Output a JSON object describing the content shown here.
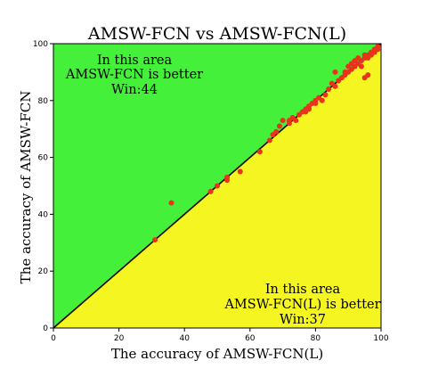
{
  "chart_data": {
    "type": "scatter",
    "title": "AMSW-FCN vs AMSW-FCN(L)",
    "xlabel": "The accuracy of  AMSW-FCN(L)",
    "ylabel": "The accuracy of  AMSW-FCN",
    "xlim": [
      0,
      100
    ],
    "ylim": [
      0,
      100
    ],
    "x_ticks": [
      0,
      20,
      40,
      60,
      80,
      100
    ],
    "y_ticks": [
      0,
      20,
      40,
      60,
      80,
      100
    ],
    "grid": false,
    "colors": {
      "upper_region": "#44f03a",
      "lower_region": "#f5f522",
      "points": "#e8341c",
      "diagonal": "#000000"
    },
    "annotations": {
      "upper": [
        "In this area",
        "AMSW-FCN is better",
        "Win:44"
      ],
      "lower": [
        "In this area",
        "AMSW-FCN(L) is better",
        "Win:37"
      ]
    },
    "points": [
      [
        31,
        31
      ],
      [
        36,
        44
      ],
      [
        48,
        48
      ],
      [
        50,
        50
      ],
      [
        53,
        52
      ],
      [
        53,
        53
      ],
      [
        57,
        55
      ],
      [
        63,
        62
      ],
      [
        66,
        66
      ],
      [
        67,
        68
      ],
      [
        68,
        69
      ],
      [
        69,
        71
      ],
      [
        70,
        73
      ],
      [
        72,
        73
      ],
      [
        72,
        72
      ],
      [
        73,
        74
      ],
      [
        74,
        73
      ],
      [
        75,
        75
      ],
      [
        76,
        76
      ],
      [
        77,
        76
      ],
      [
        77,
        77
      ],
      [
        78,
        78
      ],
      [
        78,
        77
      ],
      [
        79,
        79
      ],
      [
        80,
        80
      ],
      [
        80,
        79
      ],
      [
        81,
        81
      ],
      [
        82,
        80
      ],
      [
        83,
        82
      ],
      [
        84,
        84
      ],
      [
        85,
        86
      ],
      [
        86,
        85
      ],
      [
        86,
        90
      ],
      [
        87,
        87
      ],
      [
        88,
        88
      ],
      [
        89,
        89
      ],
      [
        89,
        90
      ],
      [
        90,
        90
      ],
      [
        90,
        92
      ],
      [
        91,
        91
      ],
      [
        91,
        93
      ],
      [
        92,
        92
      ],
      [
        92,
        94
      ],
      [
        93,
        93
      ],
      [
        93,
        95
      ],
      [
        94,
        94
      ],
      [
        94,
        92
      ],
      [
        95,
        95
      ],
      [
        95,
        96
      ],
      [
        96,
        96
      ],
      [
        96,
        95
      ],
      [
        96,
        89
      ],
      [
        97,
        97
      ],
      [
        97,
        96
      ],
      [
        98,
        98
      ],
      [
        98,
        97
      ],
      [
        99,
        99
      ],
      [
        99,
        98
      ],
      [
        95,
        88
      ]
    ]
  }
}
